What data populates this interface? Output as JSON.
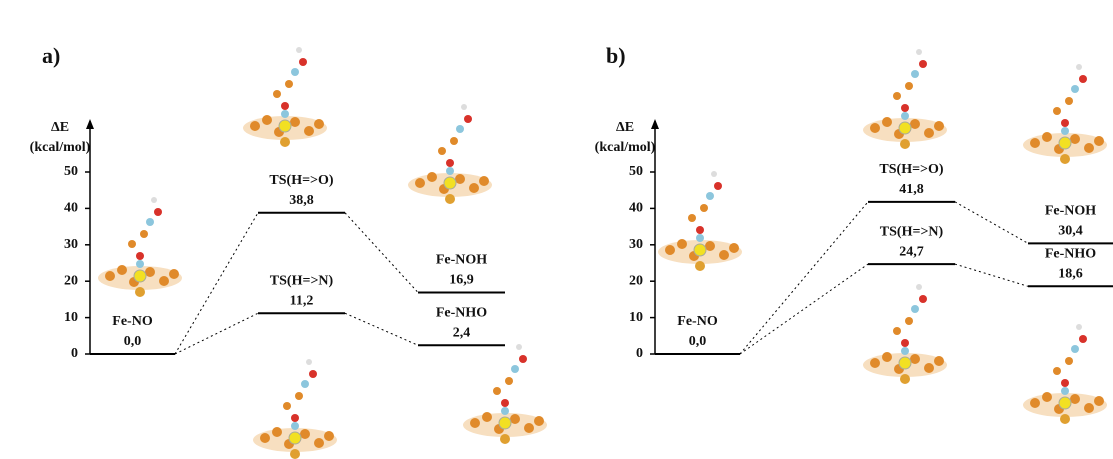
{
  "chart_data": [
    {
      "type": "energy-profile",
      "panel_label": "a)",
      "y_label": [
        "ΔE",
        "(kcal/mol)"
      ],
      "ylim": [
        0,
        64
      ],
      "yticks": [
        0,
        10,
        20,
        30,
        40,
        50
      ],
      "start": {
        "label": "Fe-NO",
        "value": 0,
        "value_label": "0,0"
      },
      "paths": [
        {
          "labels": [
            "TS(H=>O)",
            "Fe-NOH"
          ],
          "values": [
            38.8,
            16.9
          ],
          "value_labels": [
            "38,8",
            "16,9"
          ]
        },
        {
          "labels": [
            "TS(H=>N)",
            "Fe-NHO"
          ],
          "values": [
            11.2,
            2.4
          ],
          "value_labels": [
            "11,2",
            "2,4"
          ]
        }
      ]
    },
    {
      "type": "energy-profile",
      "panel_label": "b)",
      "y_label": [
        "ΔE",
        "(kcal/mol)"
      ],
      "ylim": [
        0,
        64
      ],
      "yticks": [
        0,
        10,
        20,
        30,
        40,
        50
      ],
      "start": {
        "label": "Fe-NO",
        "value": 0,
        "value_label": "0,0"
      },
      "paths": [
        {
          "labels": [
            "TS(H=>O)",
            "Fe-NOH"
          ],
          "values": [
            41.8,
            30.4
          ],
          "value_labels": [
            "41,8",
            "30,4"
          ]
        },
        {
          "labels": [
            "TS(H=>N)",
            "Fe-NHO"
          ],
          "values": [
            24.7,
            18.6
          ],
          "value_labels": [
            "24,7",
            "18,6"
          ]
        }
      ]
    }
  ]
}
